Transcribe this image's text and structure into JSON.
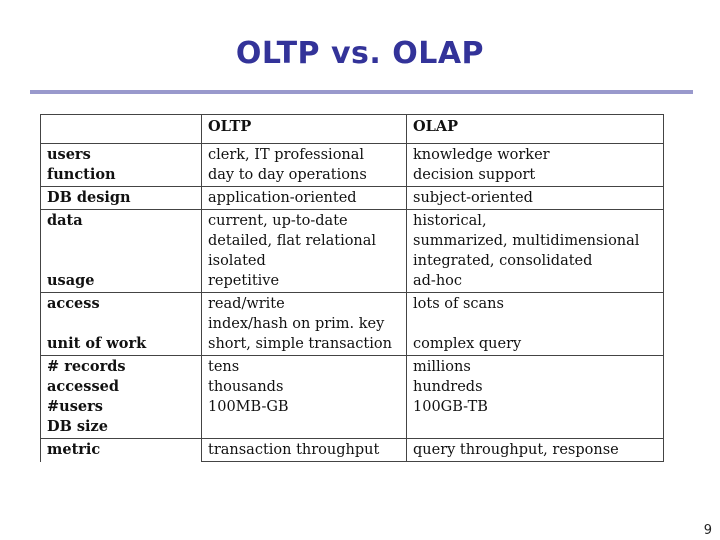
{
  "title": "OLTP vs. OLAP",
  "header": {
    "col1": "",
    "col2": "OLTP",
    "col3": "OLAP"
  },
  "rows": [
    {
      "labels": [
        "users",
        "function"
      ],
      "oltp": [
        "clerk, IT professional",
        "day to day operations"
      ],
      "olap": [
        "knowledge worker",
        "decision support"
      ]
    },
    {
      "labels": [
        "DB design"
      ],
      "oltp": [
        "application-oriented"
      ],
      "olap": [
        "subject-oriented"
      ]
    },
    {
      "labels": [
        "data",
        "",
        "",
        "usage"
      ],
      "oltp": [
        "current, up-to-date",
        "detailed, flat relational",
        "isolated",
        "repetitive"
      ],
      "olap": [
        "historical,",
        "summarized, multidimensional",
        "integrated, consolidated",
        "ad-hoc"
      ]
    },
    {
      "labels": [
        "access",
        "",
        "unit of work"
      ],
      "oltp": [
        "read/write",
        "index/hash on prim. key",
        "short, simple transaction"
      ],
      "olap": [
        "lots of scans",
        "",
        "complex query"
      ]
    },
    {
      "labels": [
        "# records accessed",
        "#users",
        "DB size"
      ],
      "oltp": [
        "tens",
        "thousands",
        "100MB-GB"
      ],
      "olap": [
        "millions",
        "hundreds",
        "100GB-TB"
      ]
    },
    {
      "labels": [
        "metric"
      ],
      "oltp": [
        "transaction throughput"
      ],
      "olap": [
        "query throughput, response"
      ]
    }
  ],
  "page_number": "9"
}
